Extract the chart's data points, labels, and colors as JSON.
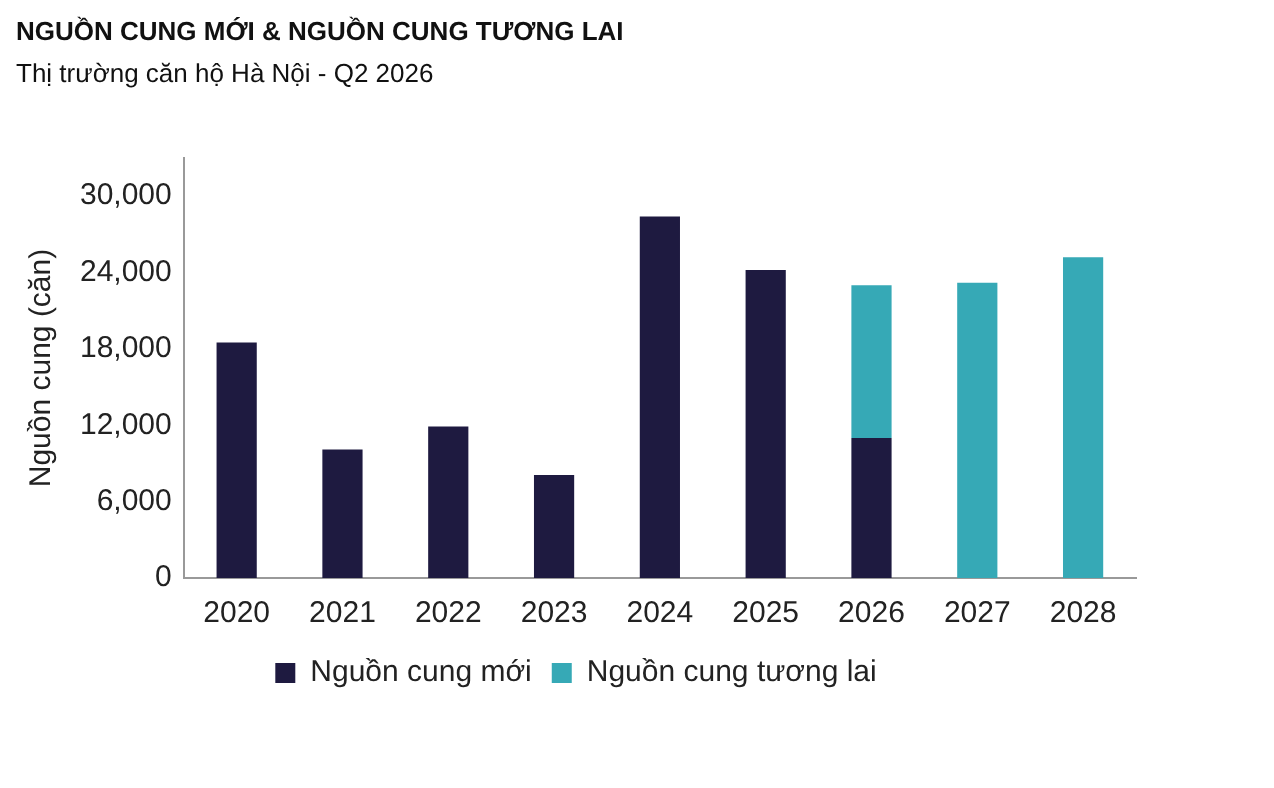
{
  "chart_data": {
    "type": "bar",
    "title": "NGUỒN CUNG MỚI & NGUỒN CUNG TƯƠNG LAI",
    "subtitle": "Thị trường căn hộ Hà Nội - Q2 2026",
    "ylabel": "Nguồn cung (căn)",
    "categories": [
      "2020",
      "2021",
      "2022",
      "2023",
      "2024",
      "2025",
      "2026",
      "2027",
      "2028"
    ],
    "series": [
      {
        "name": "Nguồn cung mới",
        "color": "#1e1a40",
        "values": [
          18500,
          10100,
          11900,
          8100,
          28400,
          24200,
          11000,
          null,
          null
        ]
      },
      {
        "name": "Nguồn cung tương lai",
        "color": "#36a9b6",
        "values": [
          null,
          null,
          null,
          null,
          null,
          null,
          12000,
          23200,
          25200
        ]
      }
    ],
    "stacked": true,
    "ylim": [
      0,
      33000
    ],
    "yticks": [
      {
        "value": 0,
        "label": "0"
      },
      {
        "value": 6000,
        "label": "6,000"
      },
      {
        "value": 12000,
        "label": "12,000"
      },
      {
        "value": 18000,
        "label": "18,000"
      },
      {
        "value": 24000,
        "label": "24,000"
      },
      {
        "value": 30000,
        "label": "30,000"
      }
    ],
    "grid": false,
    "legend": "bottom"
  }
}
